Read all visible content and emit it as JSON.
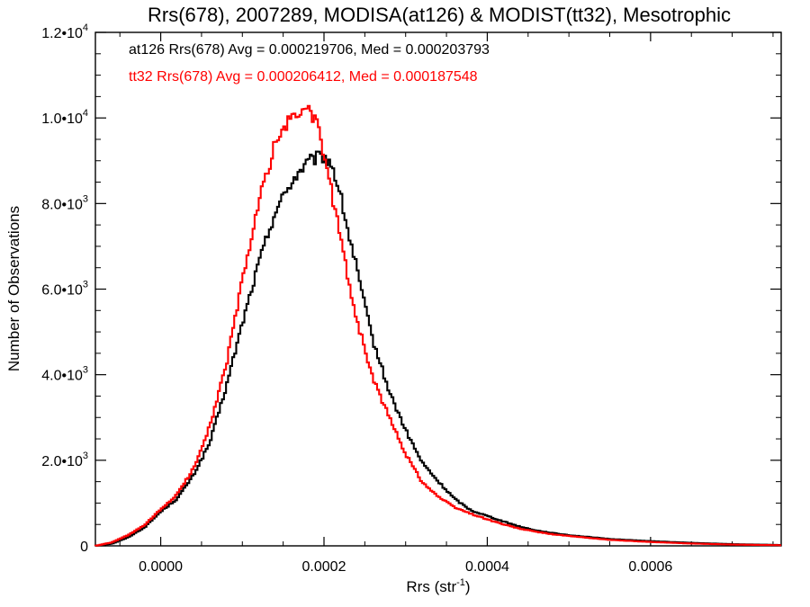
{
  "chart_data": {
    "type": "line",
    "title": "Rrs(678), 2007289, MODISA(at126) & MODIST(tt32), Mesotrophic",
    "xlabel": "Rrs (str",
    "xlabel_sup": "-1",
    "xlabel_suffix": ")",
    "ylabel": "Number of Observations",
    "xlim": [
      -8e-05,
      0.00076
    ],
    "ylim": [
      0,
      12000
    ],
    "x_ticks": [
      {
        "value": 0.0,
        "label": "0.0000"
      },
      {
        "value": 0.0002,
        "label": "0.0002"
      },
      {
        "value": 0.0004,
        "label": "0.0004"
      },
      {
        "value": 0.0006,
        "label": "0.0006"
      }
    ],
    "y_ticks": [
      {
        "value": 0,
        "mant": "0",
        "exp": ""
      },
      {
        "value": 2000,
        "mant": "2.0•10",
        "exp": "3"
      },
      {
        "value": 4000,
        "mant": "4.0•10",
        "exp": "3"
      },
      {
        "value": 6000,
        "mant": "6.0•10",
        "exp": "3"
      },
      {
        "value": 8000,
        "mant": "8.0•10",
        "exp": "3"
      },
      {
        "value": 10000,
        "mant": "1.0•10",
        "exp": "4"
      },
      {
        "value": 12000,
        "mant": "1.2•10",
        "exp": "4"
      }
    ],
    "series": [
      {
        "name": "at126 Rrs(678) Avg = 0.000219706, Med = 0.000203793",
        "color": "#000000",
        "x": [
          -8e-05,
          -6e-05,
          -4e-05,
          -2e-05,
          0.0,
          2e-05,
          4e-05,
          6e-05,
          8e-05,
          0.0001,
          0.00012,
          0.00014,
          0.00016,
          0.00017,
          0.00018,
          0.00019,
          0.0002,
          0.00021,
          0.00022,
          0.00023,
          0.00024,
          0.00025,
          0.00026,
          0.00028,
          0.0003,
          0.00032,
          0.00034,
          0.00036,
          0.00038,
          0.0004,
          0.00042,
          0.00044,
          0.00046,
          0.00048,
          0.0005,
          0.00055,
          0.0006,
          0.00065,
          0.0007,
          0.00076
        ],
        "y": [
          0,
          50,
          200,
          430,
          800,
          1100,
          1650,
          2400,
          3700,
          5200,
          6600,
          7800,
          8500,
          8750,
          8950,
          9050,
          9100,
          8900,
          8200,
          7300,
          6500,
          5600,
          4800,
          3600,
          2700,
          1950,
          1500,
          1100,
          830,
          700,
          570,
          450,
          360,
          300,
          250,
          160,
          110,
          70,
          40,
          20
        ]
      },
      {
        "name": "tt32 Rrs(678) Avg = 0.000206412, Med = 0.000187548",
        "color": "#ff0000",
        "x": [
          -8e-05,
          -6e-05,
          -4e-05,
          -2e-05,
          0.0,
          2e-05,
          4e-05,
          6e-05,
          8e-05,
          0.0001,
          0.00012,
          0.00014,
          0.00015,
          0.00016,
          0.00017,
          0.00018,
          0.00019,
          0.0002,
          0.00021,
          0.00022,
          0.00023,
          0.00024,
          0.00025,
          0.00026,
          0.00028,
          0.0003,
          0.00032,
          0.00034,
          0.00036,
          0.00038,
          0.0004,
          0.00042,
          0.00044,
          0.00046,
          0.00048,
          0.0005,
          0.00055,
          0.0006,
          0.00065,
          0.0007,
          0.00076
        ],
        "y": [
          0,
          80,
          250,
          480,
          850,
          1200,
          1800,
          2800,
          4200,
          6200,
          8000,
          9400,
          9700,
          10000,
          10100,
          10300,
          9900,
          9150,
          8200,
          7250,
          6200,
          5300,
          4600,
          3900,
          3000,
          2150,
          1500,
          1150,
          900,
          750,
          620,
          500,
          400,
          330,
          270,
          230,
          140,
          90,
          55,
          30,
          15
        ]
      }
    ],
    "legend_placement": "top-left",
    "grid": false
  }
}
